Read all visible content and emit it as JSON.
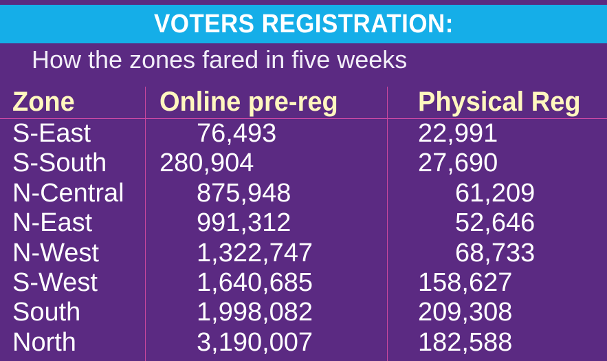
{
  "banner": {
    "title": "VOTERS REGISTRATION:"
  },
  "subtitle": "How the zones fared in five weeks",
  "colors": {
    "background": "#5b2a82",
    "banner": "#15aee8",
    "header_text": "#fff7bf",
    "body_text": "#ffffff",
    "rule_lines": "#d44aa6"
  },
  "chart_data": {
    "type": "table",
    "title": "VOTERS REGISTRATION:",
    "subtitle": "How the zones fared in five weeks",
    "columns": [
      "Zone",
      "Online pre-reg",
      "Physical Reg"
    ],
    "rows": [
      [
        "S-East",
        "76,493",
        "22,991"
      ],
      [
        "S-South",
        "280,904",
        "27,690"
      ],
      [
        "N-Central",
        "875,948",
        "61,209"
      ],
      [
        "N-East",
        "991,312",
        "52,646"
      ],
      [
        "N-West",
        "1,322,747",
        "68,733"
      ],
      [
        "S-West",
        "1,640,685",
        "158,627"
      ],
      [
        "South",
        "1,998,082",
        "209,308"
      ],
      [
        "North",
        "3,190,007",
        "182,588"
      ]
    ]
  }
}
